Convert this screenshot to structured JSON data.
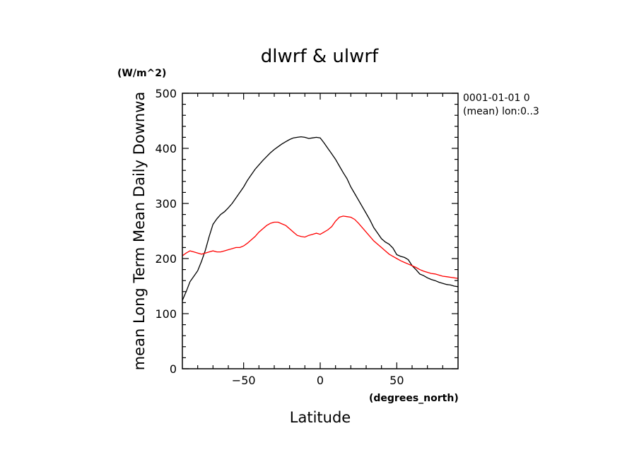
{
  "chart_data": {
    "type": "line",
    "title": "dlwrf & ulwrf",
    "xlabel": "Latitude",
    "xunits": "(degrees_north)",
    "ylabel": "mean Long Term Mean Daily Downwa",
    "yunits": "(W/m^2)",
    "xlim": [
      -90,
      90
    ],
    "ylim": [
      0,
      500
    ],
    "xticks": [
      -50,
      0,
      50
    ],
    "xtick_labels": [
      "−50",
      "0",
      "50"
    ],
    "yticks": [
      0,
      100,
      200,
      300,
      400,
      500
    ],
    "ytick_labels": [
      "0",
      "100",
      "200",
      "300",
      "400",
      "500"
    ],
    "info_lines": [
      "0001-01-01 0",
      "(mean) lon:0..3"
    ],
    "grid": false,
    "legend": "none",
    "series": [
      {
        "color": "#000000",
        "x": [
          -90,
          -87.5,
          -85,
          -82.5,
          -80,
          -77.5,
          -75,
          -72.5,
          -70,
          -67.5,
          -65,
          -62.5,
          -60,
          -57.5,
          -55,
          -52.5,
          -50,
          -47.5,
          -45,
          -42.5,
          -40,
          -37.5,
          -35,
          -32.5,
          -30,
          -27.5,
          -25,
          -22.5,
          -20,
          -17.5,
          -15,
          -12.5,
          -10,
          -7.5,
          -5,
          -2.5,
          0,
          2.5,
          5,
          7.5,
          10,
          12.5,
          15,
          17.5,
          20,
          22.5,
          25,
          27.5,
          30,
          32.5,
          35,
          37.5,
          40,
          42.5,
          45,
          47.5,
          50,
          52.5,
          55,
          57.5,
          60,
          62.5,
          65,
          67.5,
          70,
          72.5,
          75,
          77.5,
          80,
          82.5,
          85,
          87.5,
          90
        ],
        "values": [
          124,
          140,
          158,
          168,
          178,
          195,
          215,
          240,
          262,
          272,
          280,
          285,
          292,
          300,
          310,
          320,
          330,
          342,
          352,
          362,
          370,
          378,
          385,
          392,
          398,
          403,
          408,
          412,
          416,
          419,
          420,
          421,
          420,
          418,
          419,
          420,
          419,
          410,
          400,
          390,
          380,
          368,
          356,
          345,
          330,
          318,
          306,
          294,
          282,
          270,
          256,
          246,
          236,
          230,
          226,
          219,
          207,
          204,
          202,
          198,
          187,
          180,
          172,
          169,
          165,
          162,
          160,
          157,
          155,
          153,
          152,
          150,
          149
        ]
      },
      {
        "color": "#ff0000",
        "x": [
          -90,
          -87.5,
          -85,
          -82.5,
          -80,
          -77.5,
          -75,
          -72.5,
          -70,
          -67.5,
          -65,
          -62.5,
          -60,
          -57.5,
          -55,
          -52.5,
          -50,
          -47.5,
          -45,
          -42.5,
          -40,
          -37.5,
          -35,
          -32.5,
          -30,
          -27.5,
          -25,
          -22.5,
          -20,
          -17.5,
          -15,
          -12.5,
          -10,
          -7.5,
          -5,
          -2.5,
          0,
          2.5,
          5,
          7.5,
          10,
          12.5,
          15,
          17.5,
          20,
          22.5,
          25,
          27.5,
          30,
          32.5,
          35,
          37.5,
          40,
          42.5,
          45,
          47.5,
          50,
          52.5,
          55,
          57.5,
          60,
          62.5,
          65,
          67.5,
          70,
          72.5,
          75,
          77.5,
          80,
          82.5,
          85,
          87.5,
          90
        ],
        "values": [
          205,
          210,
          214,
          212,
          210,
          208,
          210,
          212,
          214,
          212,
          212,
          214,
          216,
          218,
          220,
          220,
          223,
          228,
          234,
          240,
          248,
          254,
          260,
          264,
          266,
          266,
          263,
          260,
          254,
          248,
          242,
          240,
          239,
          242,
          244,
          246,
          244,
          248,
          252,
          258,
          268,
          275,
          277,
          276,
          275,
          271,
          264,
          256,
          248,
          240,
          232,
          226,
          220,
          214,
          208,
          204,
          200,
          196,
          193,
          190,
          187,
          184,
          180,
          177,
          175,
          173,
          172,
          170,
          168,
          167,
          166,
          165,
          164
        ]
      }
    ]
  }
}
